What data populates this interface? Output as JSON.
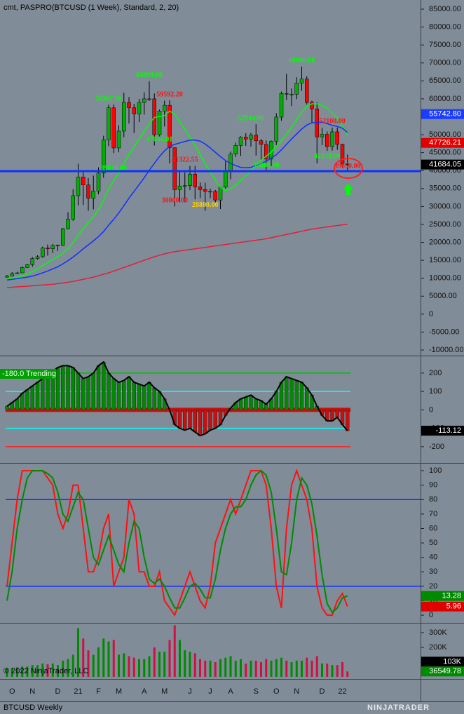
{
  "header": "cmt,  PASPRO(BTCUSD (1 Week), Standard, 2, 20)",
  "footer": {
    "copyright": "© 2022 NinjaTrader, LLC",
    "instrument": "BTCUSD Weekly",
    "logo": "NINJATRADER"
  },
  "chart_data": [
    {
      "type": "candlestick",
      "categories": [
        null,
        "O",
        null,
        null,
        null,
        "N",
        null,
        null,
        null,
        null,
        "D",
        null,
        null,
        null,
        "21",
        null,
        null,
        null,
        "F",
        null,
        null,
        null,
        "M",
        null,
        null,
        null,
        null,
        "A",
        null,
        null,
        null,
        "M",
        null,
        null,
        null,
        null,
        "J",
        null,
        null,
        null,
        "J",
        null,
        null,
        null,
        "A",
        null,
        null,
        null,
        null,
        "S",
        null,
        null,
        null,
        "O",
        null,
        null,
        null,
        "N",
        null,
        null,
        null,
        null,
        "D",
        null,
        null,
        null,
        "22",
        null
      ],
      "open": [
        10300,
        10600,
        11300,
        11500,
        13000,
        13800,
        15500,
        16000,
        18400,
        18200,
        19100,
        19200,
        23800,
        26500,
        33000,
        38200,
        36000,
        32300,
        34300,
        39300,
        48600,
        57500,
        46300,
        51000,
        59000,
        57500,
        55800,
        59000,
        60000,
        60000,
        50000,
        56600,
        58200,
        46400,
        34700,
        35700,
        35800,
        39000,
        35500,
        34700,
        34200,
        34200,
        31800,
        35400,
        39800,
        44600,
        47000,
        49300,
        48800,
        49900,
        48300,
        47300,
        43200,
        48200,
        54900,
        61500,
        61300,
        61300,
        64400,
        65500,
        59000,
        57200,
        49400,
        50100,
        46700,
        50800,
        47300,
        41800
      ],
      "high": [
        10900,
        11700,
        11800,
        13300,
        14000,
        15900,
        16400,
        18800,
        19400,
        19600,
        19400,
        24000,
        28400,
        34800,
        41900,
        40100,
        37900,
        38600,
        40900,
        49700,
        58367,
        58400,
        52600,
        61700,
        60500,
        58600,
        60000,
        61800,
        64899,
        61500,
        57000,
        59500,
        59592.2,
        45800,
        39900,
        39500,
        41300,
        41300,
        36700,
        36600,
        35000,
        34600,
        35400,
        42600,
        45300,
        47800,
        49600,
        50400,
        50500,
        52900,
        48800,
        48400,
        48400,
        56000,
        62000,
        67000,
        62900,
        66000,
        69000,
        66300,
        59500,
        59000,
        51900,
        50900,
        52000,
        52000,
        47500,
        44500
      ],
      "low": [
        10200,
        10500,
        11200,
        11400,
        12800,
        13200,
        15200,
        15700,
        16300,
        17000,
        17600,
        19000,
        23600,
        26000,
        30300,
        30400,
        28800,
        29200,
        33400,
        38000,
        46800,
        44900,
        45100,
        49300,
        53100,
        50500,
        53500,
        55600,
        59400,
        47000,
        49000,
        52300,
        42000,
        30000,
        31100,
        31200,
        34600,
        32000,
        32300,
        28800,
        32300,
        31100,
        29300,
        35000,
        37600,
        43800,
        44100,
        46900,
        46700,
        44200,
        42800,
        39600,
        41100,
        47100,
        53900,
        59700,
        58000,
        59900,
        62200,
        58400,
        53300,
        42000,
        47100,
        45500,
        45600,
        45800,
        40700,
        39650
      ],
      "close": [
        10600,
        11300,
        11500,
        13000,
        13800,
        15500,
        16000,
        18400,
        18200,
        19100,
        19200,
        23800,
        26500,
        33000,
        38200,
        36000,
        32300,
        34300,
        39300,
        48600,
        57500,
        46300,
        51000,
        59000,
        57500,
        55800,
        59000,
        60000,
        60000,
        50000,
        56600,
        58200,
        46400,
        34700,
        35700,
        35800,
        39000,
        35500,
        34700,
        34200,
        34200,
        31800,
        35400,
        39800,
        44600,
        47000,
        49300,
        48800,
        49900,
        48300,
        47300,
        43200,
        48200,
        54900,
        61500,
        61300,
        61300,
        64400,
        65500,
        59000,
        57200,
        49400,
        50100,
        46700,
        50800,
        47300,
        41800,
        41684
      ],
      "up_color": "#00b000",
      "down_color": "#ff0000",
      "lines": [
        {
          "color": "#00ff00",
          "values": [
            9800,
            10000,
            10300,
            10700,
            11200,
            11900,
            12600,
            13500,
            14300,
            15200,
            16000,
            17000,
            18300,
            19900,
            21900,
            23900,
            25500,
            27100,
            29100,
            31700,
            34900,
            37200,
            39400,
            42000,
            44500,
            46600,
            48800,
            50900,
            53000,
            54800,
            55100,
            55300,
            56600,
            55700,
            53600,
            51500,
            49200,
            47000,
            44500,
            41900,
            39500,
            37400,
            35400,
            34400,
            34900,
            35900,
            37300,
            38500,
            40000,
            41400,
            42900,
            44000,
            45200,
            46700,
            48400,
            50100,
            52100,
            54200,
            56300,
            57900,
            58600,
            58600,
            58200,
            57400,
            56000,
            54600,
            52500,
            49900
          ]
        },
        {
          "color": "#1030ff",
          "values": [
            9500,
            9700,
            9900,
            10100,
            10300,
            10600,
            11000,
            11500,
            12000,
            12600,
            13200,
            14000,
            14900,
            15900,
            17000,
            18200,
            19300,
            20400,
            21600,
            23000,
            24800,
            26400,
            28200,
            30200,
            32300,
            34200,
            36100,
            38000,
            40100,
            42000,
            43900,
            45500,
            46700,
            47300,
            47700,
            48100,
            48500,
            48500,
            48200,
            47400,
            46300,
            45100,
            43900,
            42800,
            42000,
            41400,
            40900,
            40800,
            40900,
            41400,
            42000,
            42600,
            43500,
            44400,
            45800,
            47300,
            48800,
            50200,
            51600,
            52700,
            53300,
            53400,
            53500,
            53100,
            52600,
            52300,
            51800,
            50600
          ]
        },
        {
          "color": "#e0203c",
          "values": [
            7400,
            7500,
            7600,
            7700,
            7800,
            7900,
            8000,
            8100,
            8200,
            8300,
            8500,
            8700,
            8900,
            9100,
            9400,
            9700,
            10000,
            10300,
            10700,
            11100,
            11500,
            12000,
            12500,
            13000,
            13500,
            14000,
            14500,
            15000,
            15500,
            16000,
            16400,
            16800,
            17100,
            17400,
            17600,
            17800,
            18000,
            18200,
            18400,
            18600,
            18800,
            19000,
            19200,
            19400,
            19600,
            19800,
            20000,
            20200,
            20400,
            20600,
            20800,
            21000,
            21300,
            21600,
            21900,
            22200,
            22500,
            22800,
            23100,
            23400,
            23700,
            23900,
            24100,
            24300,
            24500,
            24700,
            24900,
            25000
          ]
        }
      ],
      "hline": {
        "value": 39850,
        "color": "#1030ff"
      },
      "annotations": [
        {
          "label": "64899.00",
          "value": 64899,
          "index": 28,
          "color": "#00ff00"
        },
        {
          "label": "59592.20",
          "value": 59592.2,
          "index": 32,
          "color": "#ff1010"
        },
        {
          "label": "58367.00",
          "value": 58367,
          "index": 20,
          "color": "#00ff00"
        },
        {
          "label": "52944.96",
          "value": 52944.96,
          "index": 48,
          "color": "#00ff00"
        },
        {
          "label": "69000.00",
          "value": 69000,
          "index": 58,
          "color": "#00ff00"
        },
        {
          "label": "52100.00",
          "value": 52100,
          "index": 64,
          "color": "#ff1010"
        },
        {
          "label": "47044.01",
          "value": 47044.01,
          "index": 30,
          "color": "#00ff00"
        },
        {
          "label": "41322.55",
          "value": 41322.55,
          "index": 35,
          "color": "#ff1010"
        },
        {
          "label": "39016.00",
          "value": 39016,
          "index": 21,
          "color": "#00ff00"
        },
        {
          "label": "30000.00",
          "value": 30000,
          "index": 33,
          "color": "#ff1010"
        },
        {
          "label": "28800.00",
          "value": 28800,
          "index": 39,
          "color": "#ffd000"
        },
        {
          "label": "42333.00",
          "value": 42333,
          "index": 63,
          "color": "#00ff00"
        },
        {
          "label": "39650.00",
          "value": 39650,
          "index": 67,
          "color": "#ff1010"
        },
        {
          "label": "39800.00",
          "value": 39800,
          "index": 51,
          "color": "#00ff00"
        }
      ],
      "tags": [
        {
          "value": 55742.8,
          "label": "55742.80",
          "color": "#1a3cff"
        },
        {
          "value": 47726.21,
          "label": "47726.21",
          "color": "#e00000"
        },
        {
          "value": 41684.05,
          "label": "41684.05",
          "color": "#000000"
        }
      ],
      "ylim": [
        -11560,
        87540
      ],
      "yticks": [
        {
          "value": 85000,
          "label": "85000.00"
        },
        {
          "value": 80000,
          "label": "80000.00"
        },
        {
          "value": 75000,
          "label": "75000.00"
        },
        {
          "value": 70000,
          "label": "70000.00"
        },
        {
          "value": 65000,
          "label": "65000.00"
        },
        {
          "value": 60000,
          "label": "60000.00"
        },
        {
          "value": 55000,
          "label": "55000.00"
        },
        {
          "value": 50000,
          "label": "50000.00"
        },
        {
          "value": 45000,
          "label": "45000.00"
        },
        {
          "value": 40000,
          "label": "40000.00"
        },
        {
          "value": 35000,
          "label": "35000.00"
        },
        {
          "value": 30000,
          "label": "30000.00"
        },
        {
          "value": 25000,
          "label": "25000.00"
        },
        {
          "value": 20000,
          "label": "20000.00"
        },
        {
          "value": 15000,
          "label": "15000.00"
        },
        {
          "value": 10000,
          "label": "10000.00"
        },
        {
          "value": 5000,
          "label": "5000.00"
        },
        0,
        {
          "value": -5000,
          "label": "-5000.00"
        },
        {
          "value": -10000,
          "label": "-10000.00"
        }
      ]
    },
    {
      "type": "oscillator",
      "label": "-180.0 Trending",
      "values": [
        20,
        40,
        60,
        90,
        110,
        130,
        150,
        170,
        190,
        210,
        230,
        240,
        240,
        230,
        200,
        170,
        180,
        200,
        240,
        260,
        200,
        170,
        150,
        160,
        180,
        150,
        140,
        130,
        150,
        120,
        100,
        60,
        0,
        -80,
        -100,
        -110,
        -100,
        -120,
        -140,
        -130,
        -110,
        -100,
        -80,
        -30,
        10,
        40,
        60,
        70,
        80,
        60,
        50,
        30,
        60,
        100,
        150,
        180,
        170,
        160,
        150,
        120,
        80,
        20,
        -30,
        -60,
        -60,
        -40,
        -80,
        -113.12
      ],
      "up_color": "#008a00",
      "down_color": "#c81010",
      "line_color": "#000000",
      "levels": [
        {
          "value": 200,
          "color": "#00c000"
        },
        {
          "value": 100,
          "color": "#00ffff"
        },
        {
          "value": -100,
          "color": "#00ffff"
        },
        {
          "value": -200,
          "color": "#ff2020"
        }
      ],
      "tags": [
        {
          "value": -113.12,
          "label": "-113.12",
          "color": "#000000"
        }
      ],
      "ylim": [
        -288,
        291
      ],
      "yticks": [
        200,
        100,
        0,
        -100,
        -200
      ]
    },
    {
      "type": "stochastic",
      "series": [
        {
          "color": "#ff1010",
          "values": [
            20,
            50,
            80,
            100,
            100,
            100,
            100,
            100,
            95,
            90,
            70,
            60,
            70,
            90,
            90,
            60,
            30,
            30,
            40,
            60,
            70,
            20,
            30,
            40,
            80,
            70,
            30,
            30,
            20,
            20,
            30,
            10,
            5,
            0,
            10,
            20,
            30,
            20,
            10,
            5,
            20,
            50,
            60,
            70,
            80,
            70,
            80,
            90,
            100,
            100,
            100,
            90,
            60,
            20,
            5,
            60,
            90,
            100,
            90,
            80,
            60,
            20,
            5,
            0,
            0,
            10,
            15,
            5.96
          ]
        },
        {
          "color": "#008a00",
          "values": [
            10,
            30,
            60,
            80,
            95,
            100,
            100,
            100,
            98,
            95,
            85,
            70,
            65,
            75,
            85,
            80,
            60,
            40,
            35,
            45,
            55,
            45,
            35,
            30,
            50,
            65,
            60,
            40,
            25,
            22,
            25,
            20,
            12,
            5,
            5,
            12,
            20,
            22,
            18,
            12,
            12,
            25,
            45,
            60,
            70,
            75,
            75,
            80,
            90,
            97,
            100,
            97,
            85,
            60,
            30,
            28,
            50,
            80,
            95,
            90,
            77,
            55,
            28,
            8,
            2,
            5,
            12,
            13.28
          ]
        }
      ],
      "levels": [
        {
          "value": 80,
          "color": "#1030ff"
        },
        {
          "value": 20,
          "color": "#1030ff"
        }
      ],
      "tags": [
        {
          "value": 13.28,
          "label": "13.28",
          "color": "#008a00"
        },
        {
          "value": 5.96,
          "label": "5.96",
          "color": "#e00000"
        }
      ],
      "ylim": [
        -5.3,
        104.9
      ],
      "yticks": [
        100,
        90,
        80,
        70,
        60,
        50,
        40,
        30,
        20,
        10,
        0
      ]
    },
    {
      "type": "volume",
      "values": [
        60000,
        60000,
        65000,
        70000,
        70000,
        80000,
        80000,
        90000,
        85000,
        90000,
        80000,
        110000,
        120000,
        150000,
        330000,
        260000,
        180000,
        150000,
        200000,
        260000,
        240000,
        250000,
        150000,
        160000,
        140000,
        130000,
        120000,
        120000,
        140000,
        200000,
        170000,
        170000,
        250000,
        350000,
        250000,
        180000,
        170000,
        160000,
        120000,
        110000,
        110000,
        100000,
        120000,
        130000,
        140000,
        110000,
        120000,
        90000,
        110000,
        110000,
        100000,
        120000,
        110000,
        120000,
        130000,
        110000,
        100000,
        110000,
        110000,
        130000,
        110000,
        140000,
        90000,
        90000,
        80000,
        80000,
        100000,
        36549.78
      ],
      "tags": [
        {
          "value": 103000,
          "label": "103K",
          "color": "#000000"
        },
        {
          "value": 36549.78,
          "label": "36549.78",
          "color": "#008a00"
        }
      ],
      "ylim": [
        -14300,
        361900
      ],
      "yticks": [
        {
          "value": 300000,
          "label": "300K"
        },
        {
          "value": 200000,
          "label": "200K"
        },
        {
          "value": 100000,
          "label": "100K"
        }
      ]
    }
  ]
}
